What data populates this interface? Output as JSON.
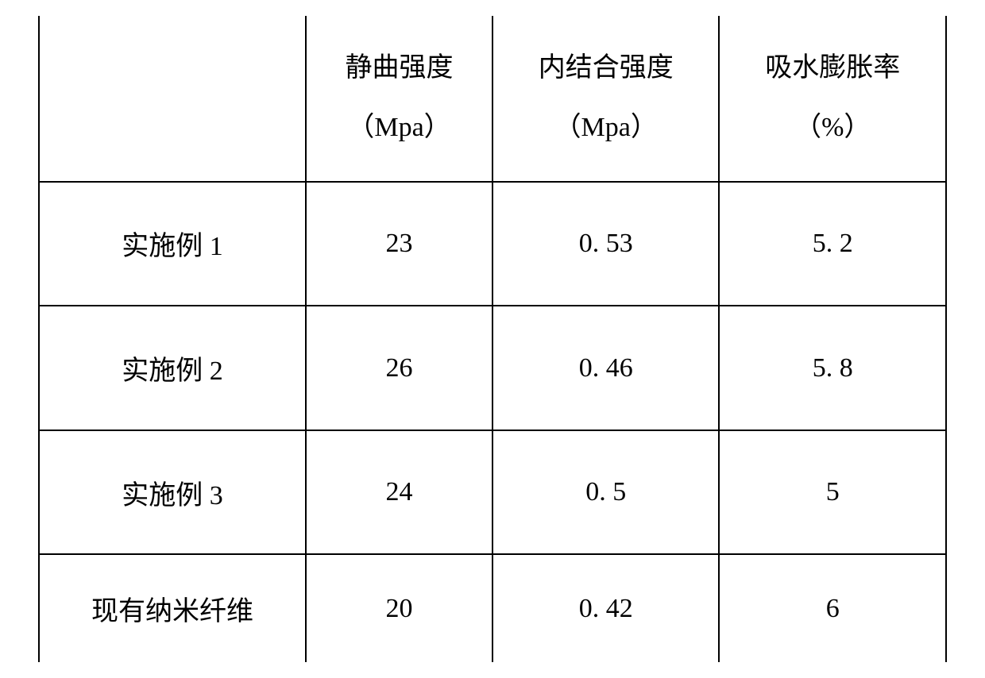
{
  "table": {
    "background_color": "#ffffff",
    "border_color": "#000000",
    "text_color": "#000000",
    "font_size": 34,
    "columns": [
      {
        "label_line1": "",
        "label_line2": ""
      },
      {
        "label_line1": "静曲强度",
        "label_line2": "（Mpa）"
      },
      {
        "label_line1": "内结合强度",
        "label_line2": "（Mpa）"
      },
      {
        "label_line1": "吸水膨胀率",
        "label_line2": "（%）"
      }
    ],
    "rows": [
      {
        "label": "实施例 1",
        "values": [
          "23",
          "0. 53",
          "5. 2"
        ]
      },
      {
        "label": "实施例 2",
        "values": [
          "26",
          "0. 46",
          "5. 8"
        ]
      },
      {
        "label": "实施例 3",
        "values": [
          "24",
          "0. 5",
          "5"
        ]
      },
      {
        "label": "现有纳米纤维",
        "values": [
          "20",
          "0. 42",
          "6"
        ]
      }
    ]
  }
}
